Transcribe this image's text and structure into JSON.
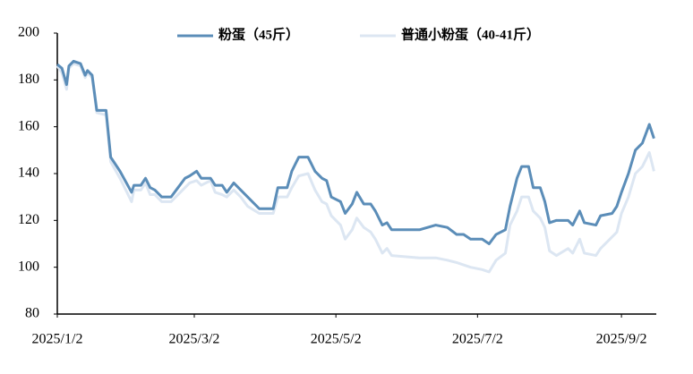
{
  "chart_data": {
    "type": "line",
    "x": [
      "2025/1/2",
      "2025/1/4",
      "2025/1/6",
      "2025/1/7",
      "2025/1/9",
      "2025/1/12",
      "2025/1/14",
      "2025/1/15",
      "2025/1/17",
      "2025/1/19",
      "2025/1/23",
      "2025/1/24",
      "2025/1/25",
      "2025/1/29",
      "2025/2/3",
      "2025/2/4",
      "2025/2/7",
      "2025/2/9",
      "2025/2/11",
      "2025/2/13",
      "2025/2/16",
      "2025/2/20",
      "2025/2/23",
      "2025/2/26",
      "2025/2/28",
      "2025/3/3",
      "2025/3/5",
      "2025/3/9",
      "2025/3/11",
      "2025/3/14",
      "2025/3/16",
      "2025/3/19",
      "2025/3/22",
      "2025/3/25",
      "2025/3/30",
      "2025/4/5",
      "2025/4/7",
      "2025/4/11",
      "2025/4/13",
      "2025/4/16",
      "2025/4/20",
      "2025/4/23",
      "2025/4/26",
      "2025/4/28",
      "2025/4/30",
      "2025/5/4",
      "2025/5/6",
      "2025/5/9",
      "2025/5/11",
      "2025/5/14",
      "2025/5/17",
      "2025/5/19",
      "2025/5/22",
      "2025/5/24",
      "2025/5/26",
      "2025/6/7",
      "2025/6/14",
      "2025/6/19",
      "2025/6/23",
      "2025/6/26",
      "2025/6/29",
      "2025/7/4",
      "2025/7/7",
      "2025/7/10",
      "2025/7/14",
      "2025/7/16",
      "2025/7/19",
      "2025/7/21",
      "2025/7/24",
      "2025/7/26",
      "2025/7/29",
      "2025/7/31",
      "2025/8/2",
      "2025/8/5",
      "2025/8/10",
      "2025/8/12",
      "2025/8/15",
      "2025/8/17",
      "2025/8/22",
      "2025/8/24",
      "2025/8/29",
      "2025/8/31",
      "2025/9/2",
      "2025/9/5",
      "2025/9/8",
      "2025/9/11",
      "2025/9/14",
      "2025/9/16"
    ],
    "series": [
      {
        "name": "粉蛋（45斤）",
        "color": "#5b8db8",
        "values": [
          186.6,
          185,
          178,
          186,
          188,
          187,
          182,
          184,
          182,
          167,
          167,
          157,
          147,
          141,
          132,
          135,
          135,
          138,
          134,
          133,
          130,
          130,
          134,
          138,
          139,
          141,
          138,
          138,
          135,
          135,
          132,
          136,
          133,
          130,
          125,
          125,
          134,
          134,
          141,
          147,
          147,
          141,
          138,
          137,
          130,
          128,
          123,
          127,
          132,
          127,
          127,
          124,
          118,
          119,
          116,
          116,
          118,
          117,
          114,
          114,
          112,
          112,
          110,
          114,
          116,
          126,
          138,
          143,
          143,
          134,
          134,
          128,
          119,
          120,
          120,
          118,
          124,
          119,
          118,
          122,
          123,
          126,
          132,
          140,
          150,
          153,
          161,
          155
        ]
      },
      {
        "name": "普通小粉蛋（40-41斤）",
        "color": "#dce6f2",
        "values": [
          186,
          183,
          176,
          185,
          187,
          186,
          181,
          183,
          181,
          166,
          165,
          155,
          145,
          138,
          128,
          133,
          133,
          136,
          131,
          131,
          128,
          128,
          131,
          134,
          136,
          137,
          135,
          137,
          132,
          131,
          130,
          133,
          130,
          126,
          123,
          123,
          130,
          130,
          134,
          139,
          140,
          133,
          128,
          127,
          122,
          118,
          112,
          116,
          121,
          117,
          115,
          112,
          106,
          108,
          105,
          104,
          104,
          103,
          102,
          101,
          100,
          99,
          98,
          103,
          106,
          118,
          124,
          130,
          130,
          124,
          121,
          117,
          107,
          105,
          108,
          106,
          112,
          106,
          105,
          108,
          113,
          115,
          123,
          130,
          140,
          143,
          149,
          141
        ]
      }
    ],
    "xlim": [
      "2025/1/2",
      "2025/9/17"
    ],
    "xticks": [
      "2025/1/2",
      "2025/3/2",
      "2025/5/2",
      "2025/7/2",
      "2025/9/2"
    ],
    "ylim": [
      80,
      200
    ],
    "yticks": [
      80,
      100,
      120,
      140,
      160,
      180,
      200
    ]
  }
}
